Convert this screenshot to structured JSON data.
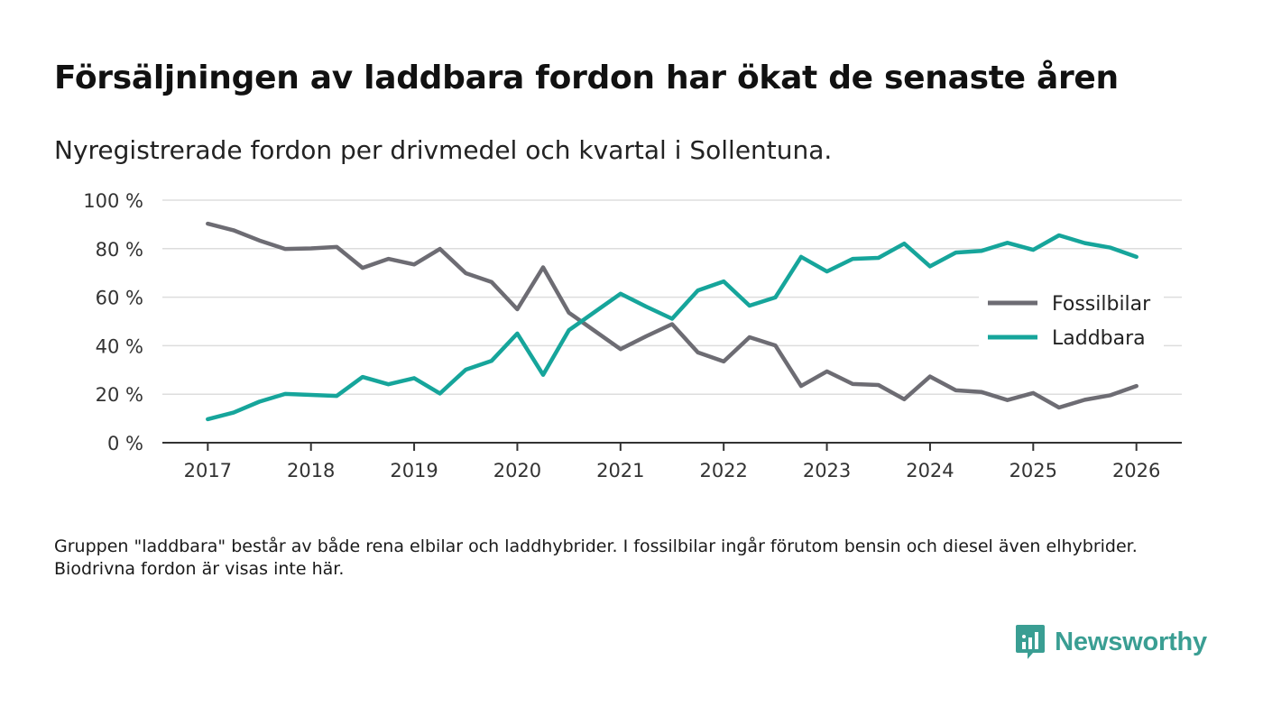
{
  "header": {
    "title": "Försäljningen av laddbara fordon har ökat de senaste åren",
    "subtitle": "Nyregistrerade fordon per drivmedel och kvartal i Sollentuna."
  },
  "footer": {
    "note": "Gruppen \"laddbara\" består av både rena elbilar och laddhybrider. I fossilbilar ingår förutom bensin och diesel även elhybrider. Biodrivna fordon är visas inte här.",
    "brand": "Newsworthy"
  },
  "colors": {
    "fossil": "#6d6c73",
    "laddbara": "#16a59b",
    "grid": "#dddddd",
    "axis": "#333333",
    "brand": "#3a9e93"
  },
  "chart_data": {
    "type": "line",
    "title": "Försäljningen av laddbara fordon har ökat de senaste åren",
    "subtitle": "Nyregistrerade fordon per drivmedel och kvartal i Sollentuna.",
    "xlabel": "",
    "ylabel": "",
    "x": [
      2017.0,
      2017.25,
      2017.5,
      2017.75,
      2018.0,
      2018.25,
      2018.5,
      2018.75,
      2019.0,
      2019.25,
      2019.5,
      2019.75,
      2020.0,
      2020.25,
      2020.5,
      2020.75,
      2021.0,
      2021.25,
      2021.5,
      2021.75,
      2022.0,
      2022.25,
      2022.5,
      2022.75,
      2023.0,
      2023.25,
      2023.5,
      2023.75,
      2024.0,
      2024.25,
      2024.5,
      2024.75,
      2025.0,
      2025.25,
      2025.5,
      2025.75,
      2026.0
    ],
    "xlim": [
      2016.56,
      2026.44
    ],
    "xticks": [
      2017,
      2018,
      2019,
      2020,
      2021,
      2022,
      2023,
      2024,
      2025,
      2026
    ],
    "xtick_labels": [
      "2017",
      "2018",
      "2019",
      "2020",
      "2021",
      "2022",
      "2023",
      "2024",
      "2025",
      "2026"
    ],
    "ylim": [
      0,
      100
    ],
    "yticks": [
      0,
      20,
      40,
      60,
      80,
      100
    ],
    "ytick_labels": [
      "0 %",
      "20 %",
      "40 %",
      "60 %",
      "80 %",
      "100 %"
    ],
    "grid": true,
    "legend_position": "right",
    "series": [
      {
        "name": "Fossilbilar",
        "color": "#6d6c73",
        "values": [
          90.3,
          87.6,
          83.4,
          79.9,
          80.1,
          80.7,
          72.1,
          75.8,
          73.5,
          79.9,
          69.9,
          66.3,
          55.0,
          72.3,
          53.6,
          46.1,
          38.6,
          43.9,
          48.9,
          37.2,
          33.5,
          43.5,
          40.1,
          23.4,
          29.4,
          24.2,
          23.8,
          17.9,
          27.3,
          21.6,
          20.9,
          17.6,
          20.5,
          14.5,
          17.7,
          19.6,
          23.4
        ]
      },
      {
        "name": "Laddbara",
        "color": "#16a59b",
        "values": [
          9.7,
          12.4,
          16.9,
          20.1,
          19.7,
          19.3,
          27.1,
          24.1,
          26.6,
          20.3,
          30.1,
          33.7,
          45.0,
          28.0,
          46.4,
          53.9,
          61.4,
          56.1,
          51.1,
          62.8,
          66.5,
          56.5,
          59.9,
          76.6,
          70.6,
          75.8,
          76.2,
          82.1,
          72.7,
          78.4,
          79.1,
          82.4,
          79.5,
          85.5,
          82.3,
          80.4,
          76.6
        ]
      }
    ]
  }
}
